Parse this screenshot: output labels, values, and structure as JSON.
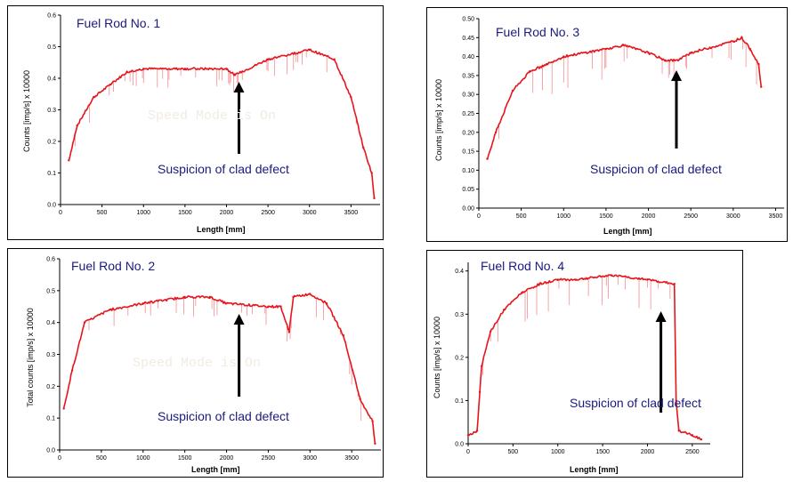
{
  "chart_data": [
    {
      "type": "line",
      "title": "Fuel Rod No. 1",
      "xlabel": "Length [mm]",
      "ylabel": "Counts [imp/s] x 10000",
      "xlim": [
        0,
        3850
      ],
      "ylim": [
        0,
        0.6
      ],
      "xticks": [
        "0",
        "500",
        "1000",
        "1500",
        "2000",
        "2500",
        "3000",
        "3500"
      ],
      "yticks": [
        "0.0",
        "0.1",
        "0.2",
        "0.3",
        "0.4",
        "0.5",
        "0.6"
      ],
      "annotation": "Suspicion of clad defect",
      "annotation_x": 2150,
      "watermark": "Speed Mode is On",
      "color": "#e8141c",
      "series": [
        {
          "x": [
            100,
            200,
            400,
            600,
            800,
            1000,
            1500,
            2000,
            2100,
            2500,
            3000,
            3300,
            3500,
            3650,
            3750,
            3780
          ],
          "values": [
            0.14,
            0.25,
            0.34,
            0.38,
            0.42,
            0.43,
            0.43,
            0.43,
            0.41,
            0.46,
            0.49,
            0.46,
            0.34,
            0.18,
            0.1,
            0.02
          ]
        }
      ]
    },
    {
      "type": "line",
      "title": "Fuel Rod No. 2",
      "xlabel": "Length [mm]",
      "ylabel": "Total counts [imp/s] x 10000",
      "xlim": [
        0,
        3850
      ],
      "ylim": [
        0,
        0.6
      ],
      "xticks": [
        "0",
        "500",
        "1000",
        "1500",
        "2000",
        "2500",
        "3000",
        "3500"
      ],
      "yticks": [
        "0.0",
        "0.1",
        "0.2",
        "0.3",
        "0.4",
        "0.5",
        "0.6"
      ],
      "annotation": "Suspicion of clad defect",
      "annotation_x": 2150,
      "watermark": "Speed Mode is On",
      "color": "#e8141c",
      "series": [
        {
          "x": [
            50,
            150,
            300,
            600,
            1000,
            1500,
            1800,
            2000,
            2500,
            2650,
            2750,
            2800,
            3000,
            3200,
            3400,
            3600,
            3750,
            3780
          ],
          "values": [
            0.13,
            0.25,
            0.4,
            0.44,
            0.46,
            0.48,
            0.48,
            0.46,
            0.45,
            0.45,
            0.37,
            0.48,
            0.49,
            0.46,
            0.36,
            0.16,
            0.09,
            0.02
          ]
        }
      ]
    },
    {
      "type": "line",
      "title": "Fuel Rod No. 3",
      "xlabel": "Length [mm]",
      "ylabel": "Counts [imp/s] x 10000",
      "xlim": [
        0,
        3600
      ],
      "ylim": [
        0,
        0.5
      ],
      "xticks": [
        "0",
        "500",
        "1000",
        "1500",
        "2000",
        "2500",
        "3000",
        "3500"
      ],
      "yticks": [
        "0.00",
        "0.05",
        "0.10",
        "0.15",
        "0.20",
        "0.25",
        "0.30",
        "0.35",
        "0.40",
        "0.45",
        "0.50"
      ],
      "annotation": "Suspicion of clad defect",
      "annotation_x": 2330,
      "color": "#e8141c",
      "series": [
        {
          "x": [
            100,
            200,
            400,
            600,
            800,
            1000,
            1500,
            1700,
            2000,
            2200,
            2350,
            2500,
            3000,
            3100,
            3200,
            3300,
            3330
          ],
          "values": [
            0.13,
            0.2,
            0.31,
            0.36,
            0.38,
            0.4,
            0.42,
            0.43,
            0.41,
            0.39,
            0.39,
            0.41,
            0.44,
            0.45,
            0.42,
            0.38,
            0.32
          ]
        }
      ]
    },
    {
      "type": "line",
      "title": "Fuel Rod No. 4",
      "xlabel": "Length [mm]",
      "ylabel": "Counts [imp/s] x 10000",
      "xlim": [
        0,
        2700
      ],
      "ylim": [
        0,
        0.42
      ],
      "xticks": [
        "0",
        "500",
        "1000",
        "1500",
        "2000",
        "2500"
      ],
      "yticks": [
        "0.0",
        "0.1",
        "0.2",
        "0.3",
        "0.4"
      ],
      "annotation": "Suspicion of clad defect",
      "annotation_x": 2150,
      "color": "#e8141c",
      "series": [
        {
          "x": [
            0,
            100,
            130,
            150,
            250,
            400,
            600,
            800,
            1000,
            1200,
            1600,
            2000,
            2300,
            2320,
            2350,
            2500,
            2600
          ],
          "values": [
            0.02,
            0.03,
            0.12,
            0.18,
            0.26,
            0.31,
            0.35,
            0.37,
            0.38,
            0.38,
            0.39,
            0.38,
            0.37,
            0.1,
            0.03,
            0.02,
            0.01
          ]
        }
      ]
    }
  ]
}
